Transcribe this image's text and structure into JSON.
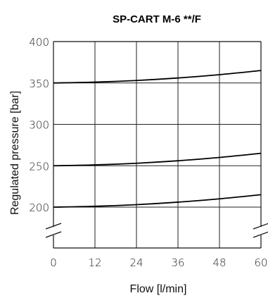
{
  "chart_data": {
    "type": "line",
    "title": "SP-CART  M-6 **/F",
    "xlabel": "Flow [l/min]",
    "ylabel": "Regulated pressure [bar]",
    "x_ticks": [
      "0",
      "12",
      "24",
      "36",
      "48",
      "60"
    ],
    "y_ticks": [
      "200",
      "250",
      "300",
      "350",
      "400"
    ],
    "xlim": [
      0,
      60
    ],
    "ylim": [
      200,
      400
    ],
    "y_axis_break": true,
    "grid": true,
    "series": [
      {
        "x": [
          0,
          12,
          24,
          36,
          48,
          60
        ],
        "values": [
          350,
          351,
          353,
          356,
          360,
          365
        ]
      },
      {
        "x": [
          0,
          12,
          24,
          36,
          48,
          60
        ],
        "values": [
          250,
          251,
          253,
          256,
          260,
          265
        ]
      },
      {
        "x": [
          0,
          12,
          24,
          36,
          48,
          60
        ],
        "values": [
          200,
          201,
          203,
          206,
          210,
          215
        ]
      }
    ]
  }
}
